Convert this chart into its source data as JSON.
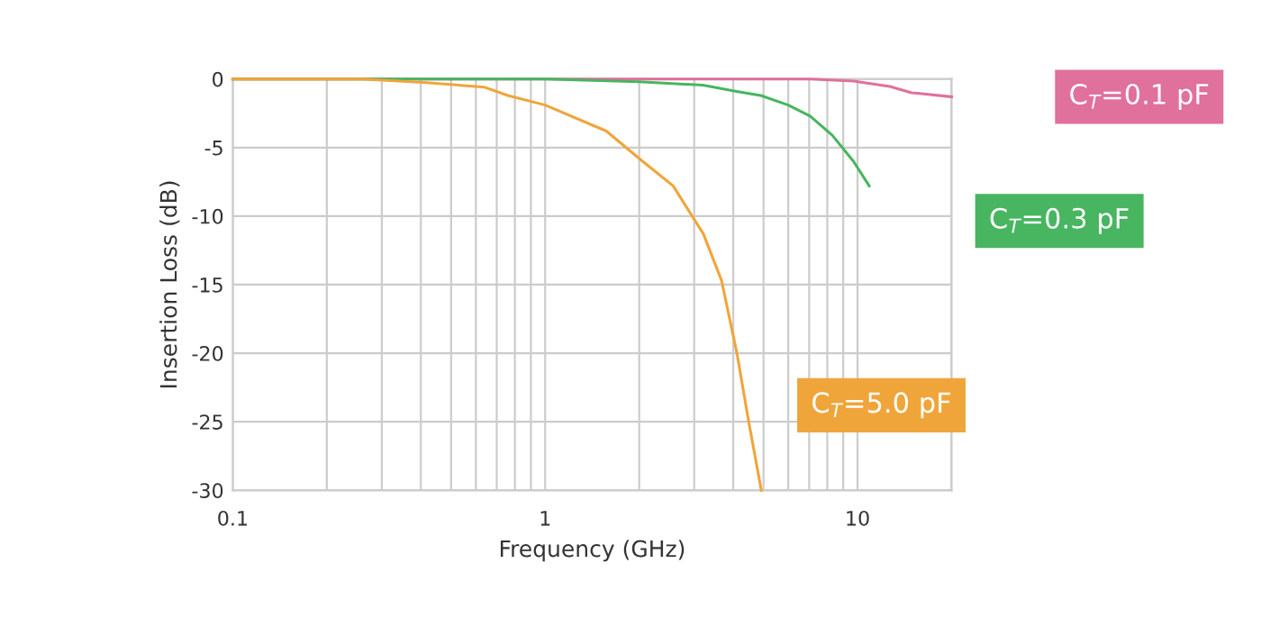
{
  "chart_data": {
    "type": "line",
    "xlabel": "Frequency (GHz)",
    "ylabel": "Insertion Loss (dB)",
    "log": "x",
    "xlim": [
      0.1,
      20
    ],
    "ylim": [
      -30,
      0
    ],
    "xticks": [
      0.1,
      {
        "value": 0.2,
        "label": null
      },
      {
        "value": 0.3,
        "label": null
      },
      {
        "value": 0.4,
        "label": null
      },
      {
        "value": 0.5,
        "label": null
      },
      {
        "value": 0.6,
        "label": null
      },
      {
        "value": 0.7,
        "label": null
      },
      {
        "value": 0.8,
        "label": null
      },
      {
        "value": 0.9,
        "label": null
      },
      1,
      {
        "value": 2,
        "label": null
      },
      {
        "value": 3,
        "label": null
      },
      {
        "value": 4,
        "label": null
      },
      {
        "value": 5,
        "label": null
      },
      {
        "value": 6,
        "label": null
      },
      {
        "value": 7,
        "label": null
      },
      {
        "value": 8,
        "label": null
      },
      {
        "value": 9,
        "label": null
      },
      10,
      {
        "value": 20,
        "label": null
      }
    ],
    "yticks": [
      -30,
      -25,
      -20,
      -15,
      -10,
      -5,
      0
    ],
    "grid": true,
    "legend": false,
    "marker": "none",
    "line_style": "solid",
    "series": [
      {
        "name": "C$_{T}$=0.1 pF",
        "color": "#e0709c",
        "x": [
          0.1,
          1,
          7.05,
          9.7,
          12.7,
          14.9,
          20
        ],
        "values": [
          0,
          0,
          0,
          -0.15,
          -0.55,
          -1.0,
          -1.3
        ]
      },
      {
        "name": "C$_{T}$=0.3 pF",
        "color": "#48b560",
        "x": [
          0.1,
          1,
          2.0,
          3.2,
          4.1,
          4.9,
          6.0,
          7.05,
          8.3,
          9.7,
          10.9
        ],
        "values": [
          0,
          0,
          -0.2,
          -0.45,
          -0.9,
          -1.2,
          -1.9,
          -2.7,
          -4.1,
          -6.0,
          -7.8
        ]
      },
      {
        "name": "C$_{T}$=5.0 pF",
        "color": "#f0a53a",
        "x": [
          0.1,
          0.26,
          0.417,
          0.64,
          0.76,
          1.0,
          1.57,
          2.05,
          2.57,
          3.21,
          3.67,
          4.11,
          4.5,
          4.92
        ],
        "values": [
          0,
          0,
          -0.26,
          -0.6,
          -1.2,
          -1.9,
          -3.8,
          -6.0,
          -7.8,
          -11.3,
          -14.7,
          -20.0,
          -25.2,
          -30
        ]
      }
    ]
  }
}
